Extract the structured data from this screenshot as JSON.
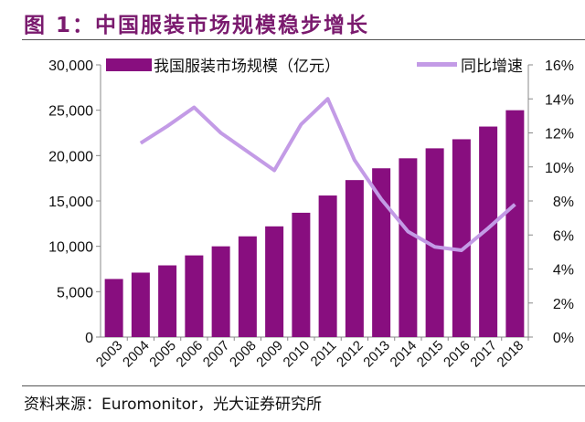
{
  "title": "图 1：中国服装市场规模稳步增长",
  "source": "资料来源：Euromonitor，光大证券研究所",
  "chart_data": {
    "type": "bar+line",
    "categories": [
      "2003",
      "2004",
      "2005",
      "2006",
      "2007",
      "2008",
      "2009",
      "2010",
      "2011",
      "2012",
      "2013",
      "2014",
      "2015",
      "2016",
      "2017",
      "2018"
    ],
    "series": [
      {
        "name": "我国服装市场规模（亿元）",
        "type": "bar",
        "axis": "left",
        "color": "#880e7f",
        "values": [
          6400,
          7100,
          7900,
          9000,
          10000,
          11100,
          12200,
          13700,
          15600,
          17300,
          18600,
          19700,
          20800,
          21800,
          23200,
          25000
        ]
      },
      {
        "name": "同比增速",
        "type": "line",
        "axis": "right",
        "color": "#c39be6",
        "values": [
          null,
          11.4,
          12.4,
          13.5,
          12.0,
          10.9,
          9.8,
          12.5,
          14.0,
          10.4,
          8.1,
          6.2,
          5.3,
          5.1,
          6.4,
          7.8
        ]
      }
    ],
    "left_axis": {
      "ylim": [
        0,
        30000
      ],
      "ticks": [
        "0",
        "5,000",
        "10,000",
        "15,000",
        "20,000",
        "25,000",
        "30,000"
      ]
    },
    "right_axis": {
      "ylim": [
        0,
        16
      ],
      "ticks": [
        "0%",
        "2%",
        "4%",
        "6%",
        "8%",
        "10%",
        "12%",
        "14%",
        "16%"
      ]
    },
    "grid": false,
    "legend": "top"
  }
}
